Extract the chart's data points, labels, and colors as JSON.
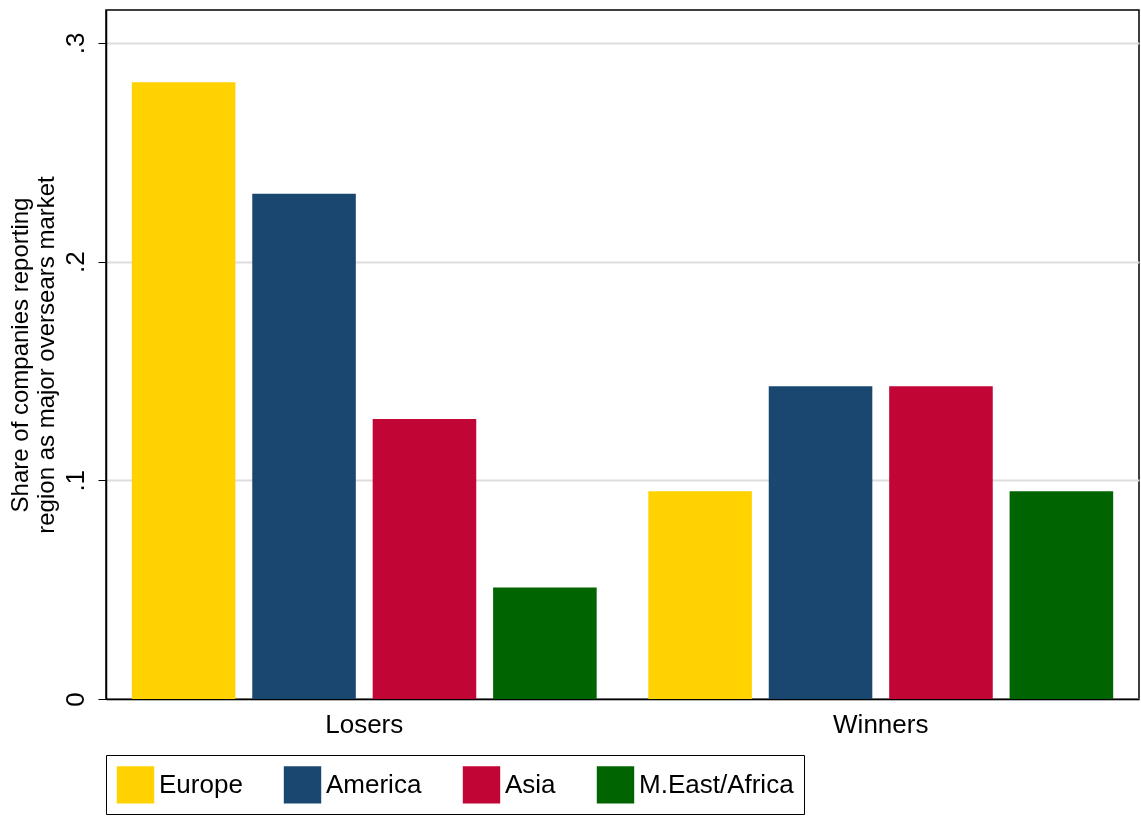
{
  "chart_data": {
    "type": "bar",
    "ylabel": "Share of companies reporting\nregion as major oversears market",
    "categories": [
      "Losers",
      "Winners"
    ],
    "series": [
      {
        "name": "Europe",
        "color": "#ffd200",
        "values": [
          0.282,
          0.095
        ]
      },
      {
        "name": "America",
        "color": "#1a476f",
        "values": [
          0.231,
          0.143
        ]
      },
      {
        "name": "Asia",
        "color": "#c10534",
        "values": [
          0.128,
          0.143
        ]
      },
      {
        "name": "M.East/Africa",
        "color": "#006400",
        "values": [
          0.051,
          0.095
        ]
      }
    ],
    "ylim": [
      0,
      0.315
    ],
    "yticks": [
      0,
      {
        "value": 0.1,
        "label": ".1"
      },
      {
        "value": 0.2,
        "label": ".2"
      },
      {
        "value": 0.3,
        "label": ".3"
      }
    ],
    "grid": "y",
    "legend": "bottom"
  }
}
